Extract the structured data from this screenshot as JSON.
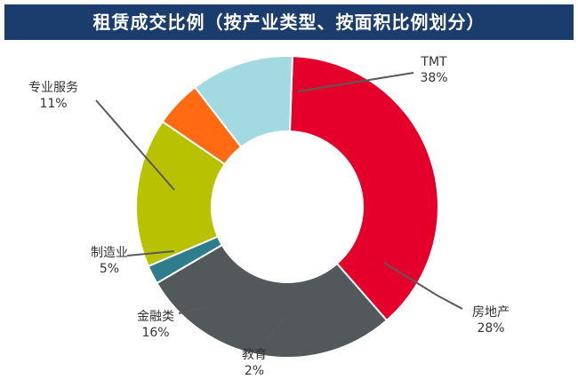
{
  "chart_data": {
    "type": "pie",
    "title": "租赁成交比例（按产业类型、按面积比例划分）",
    "donut": true,
    "slices": [
      {
        "label": "TMT",
        "value": 38,
        "display": "38%",
        "color": "#e4002b"
      },
      {
        "label": "房地产",
        "value": 28,
        "display": "28%",
        "color": "#53585b"
      },
      {
        "label": "教育",
        "value": 2,
        "display": "2%",
        "color": "#2e7d8c"
      },
      {
        "label": "金融类",
        "value": 16,
        "display": "16%",
        "color": "#b8c200"
      },
      {
        "label": "制造业",
        "value": 5,
        "display": "5%",
        "color": "#ff6a13"
      },
      {
        "label": "专业服务",
        "value": 11,
        "display": "11%",
        "color": "#a3d9e0"
      }
    ]
  }
}
